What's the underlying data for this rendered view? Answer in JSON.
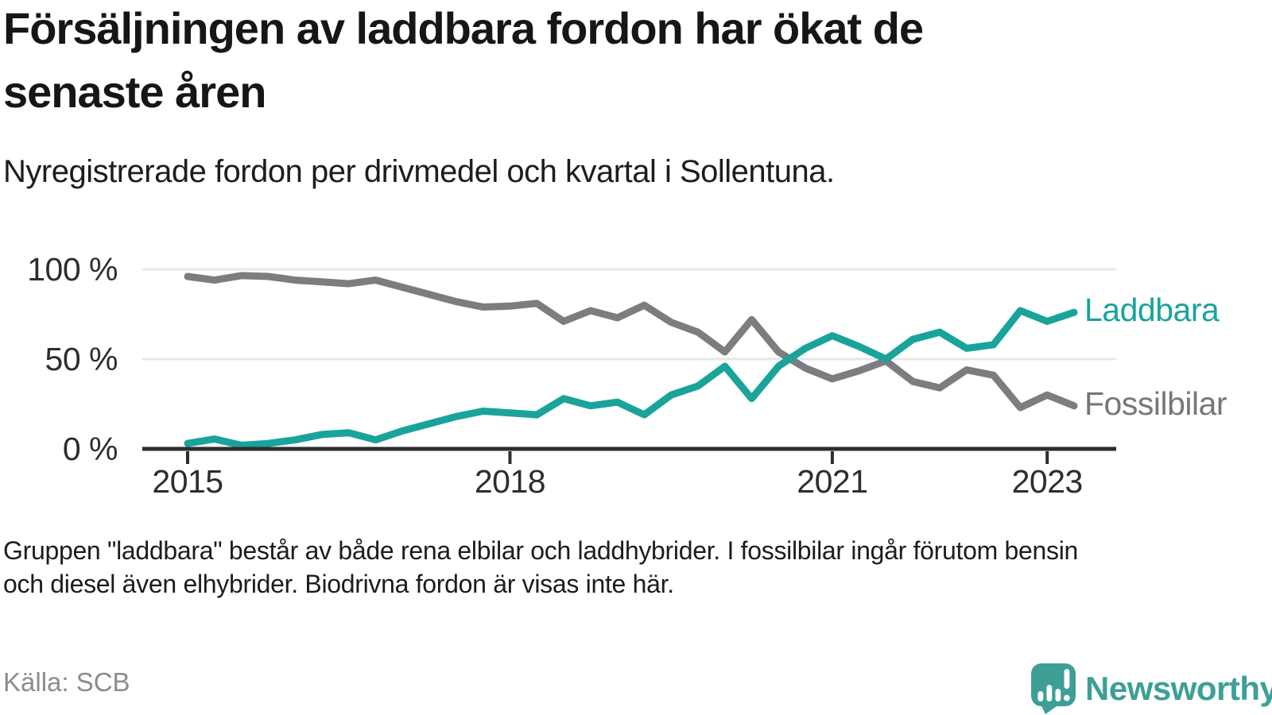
{
  "header": {
    "title_lines": [
      "Försäljningen av laddbara fordon har ökat de",
      "senaste åren"
    ],
    "subtitle": "Nyregistrerade fordon per drivmedel och kvartal i Sollentuna."
  },
  "chart_data": {
    "type": "line",
    "unit": "%",
    "title": "",
    "xlabel": "",
    "ylabel": "",
    "ylim": [
      0,
      100
    ],
    "grid": "horizontal-50-100",
    "legend_position": "right-end-of-lines",
    "categories": [
      "2015Q1",
      "2015Q2",
      "2015Q3",
      "2015Q4",
      "2016Q1",
      "2016Q2",
      "2016Q3",
      "2016Q4",
      "2017Q1",
      "2017Q2",
      "2017Q3",
      "2017Q4",
      "2018Q1",
      "2018Q2",
      "2018Q3",
      "2018Q4",
      "2019Q1",
      "2019Q2",
      "2019Q3",
      "2019Q4",
      "2020Q1",
      "2020Q2",
      "2020Q3",
      "2020Q4",
      "2021Q1",
      "2021Q2",
      "2021Q3",
      "2021Q4",
      "2022Q1",
      "2022Q2",
      "2022Q3",
      "2022Q4",
      "2023Q1",
      "2023Q2"
    ],
    "series": [
      {
        "name": "Fossilbilar",
        "color": "#7c7c81",
        "label_color": "#76767b",
        "values": [
          96,
          94,
          96.5,
          96,
          94,
          93,
          92,
          94,
          90,
          86,
          82,
          79,
          79.5,
          81,
          71,
          77,
          73,
          80,
          70.5,
          65,
          54,
          72,
          54,
          45,
          39,
          43.5,
          49,
          37.5,
          34,
          44,
          41,
          23,
          30,
          24
        ]
      },
      {
        "name": "Laddbara",
        "color": "#19a39b",
        "label_color": "#19a39b",
        "values": [
          3,
          5.5,
          2,
          3,
          5,
          8,
          9,
          5,
          10,
          14,
          18,
          21,
          20,
          19,
          28,
          24,
          26,
          19,
          30,
          35,
          46,
          28,
          46,
          56,
          63,
          57,
          50,
          61,
          65,
          56,
          58,
          77,
          71,
          76
        ]
      }
    ],
    "yticks": [
      {
        "value": 100,
        "label": "100 %"
      },
      {
        "value": 50,
        "label": "50 %"
      },
      {
        "value": 0,
        "label": "0 %"
      }
    ],
    "xticks": [
      {
        "index": 0,
        "label": "2015"
      },
      {
        "index": 12,
        "label": "2018"
      },
      {
        "index": 24,
        "label": "2021"
      },
      {
        "index": 32,
        "label": "2023"
      }
    ]
  },
  "footer": {
    "note_lines": [
      "Gruppen \"laddbara\" består av både rena elbilar och laddhybrider. I fossilbilar ingår förutom bensin",
      "och diesel även elhybrider. Biodrivna fordon är visas inte här."
    ],
    "source": "Källa: SCB"
  },
  "branding": {
    "logo_text": "Newsworthy",
    "logo_color": "#3e9e98"
  },
  "colors": {
    "accent_teal": "#19a39b",
    "neutral_gray": "#7c7c81",
    "axis": "#2d2d2e",
    "gridline": "#e7e7e7"
  }
}
